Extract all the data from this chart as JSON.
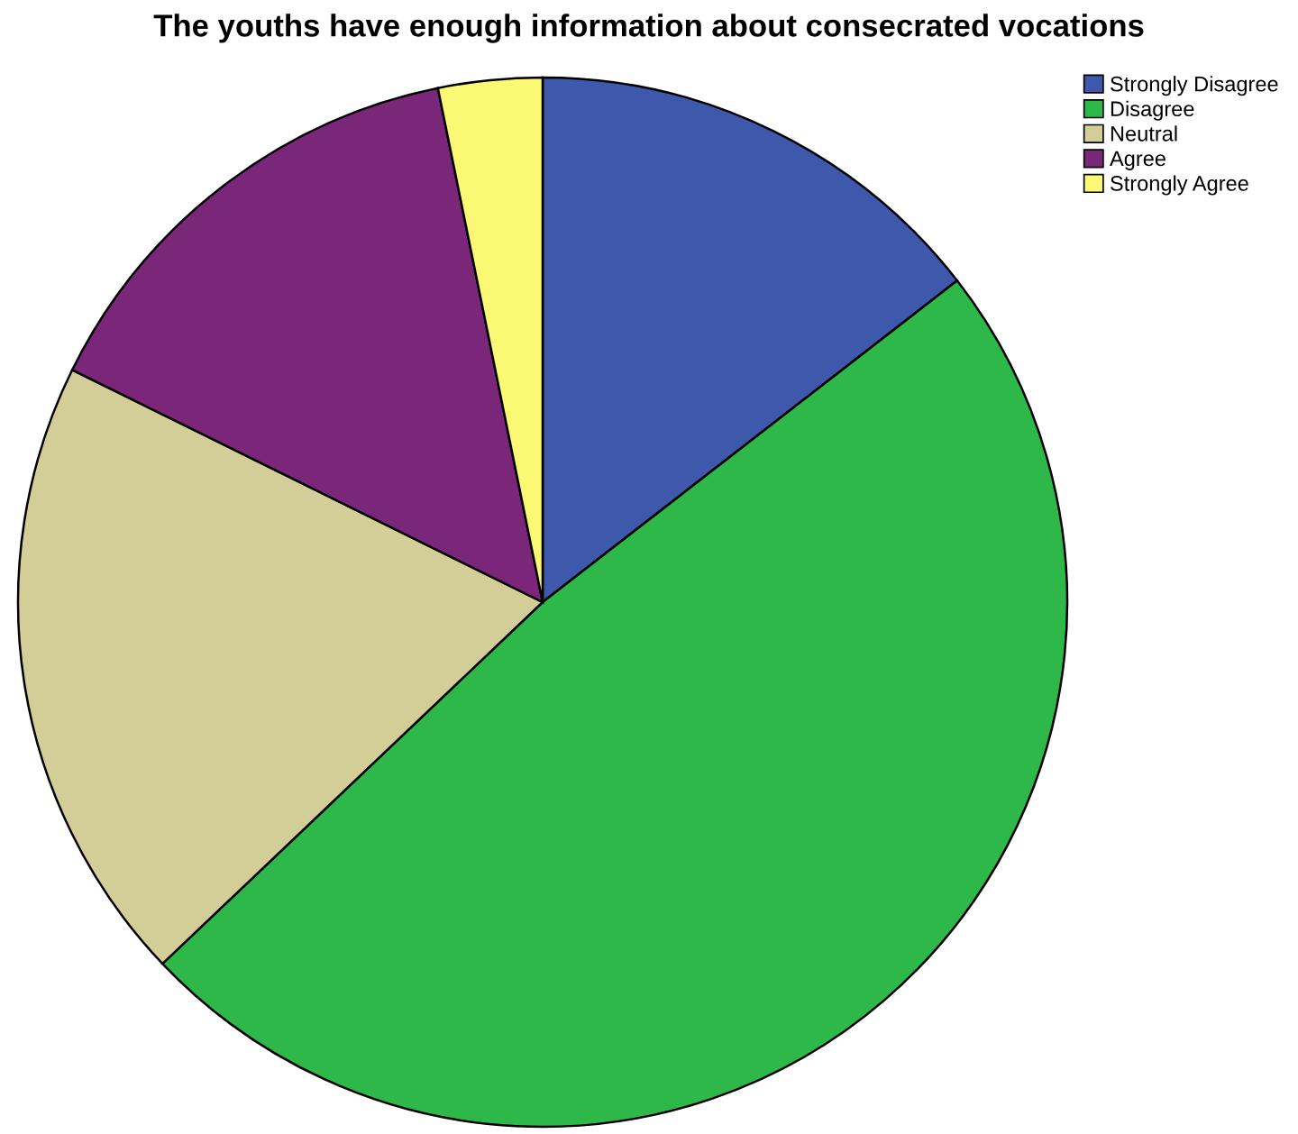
{
  "chart_data": {
    "type": "pie",
    "title": "The youths have enough information about consecrated vocations",
    "categories": [
      "Strongly Disagree",
      "Disagree",
      "Neutral",
      "Agree",
      "Strongly Agree"
    ],
    "values": [
      14.5,
      48.4,
      19.4,
      14.5,
      3.2
    ],
    "colors": [
      "#3e58ac",
      "#2eb84a",
      "#d3ce97",
      "#7b2779",
      "#fbf873"
    ],
    "legend": "top right"
  }
}
